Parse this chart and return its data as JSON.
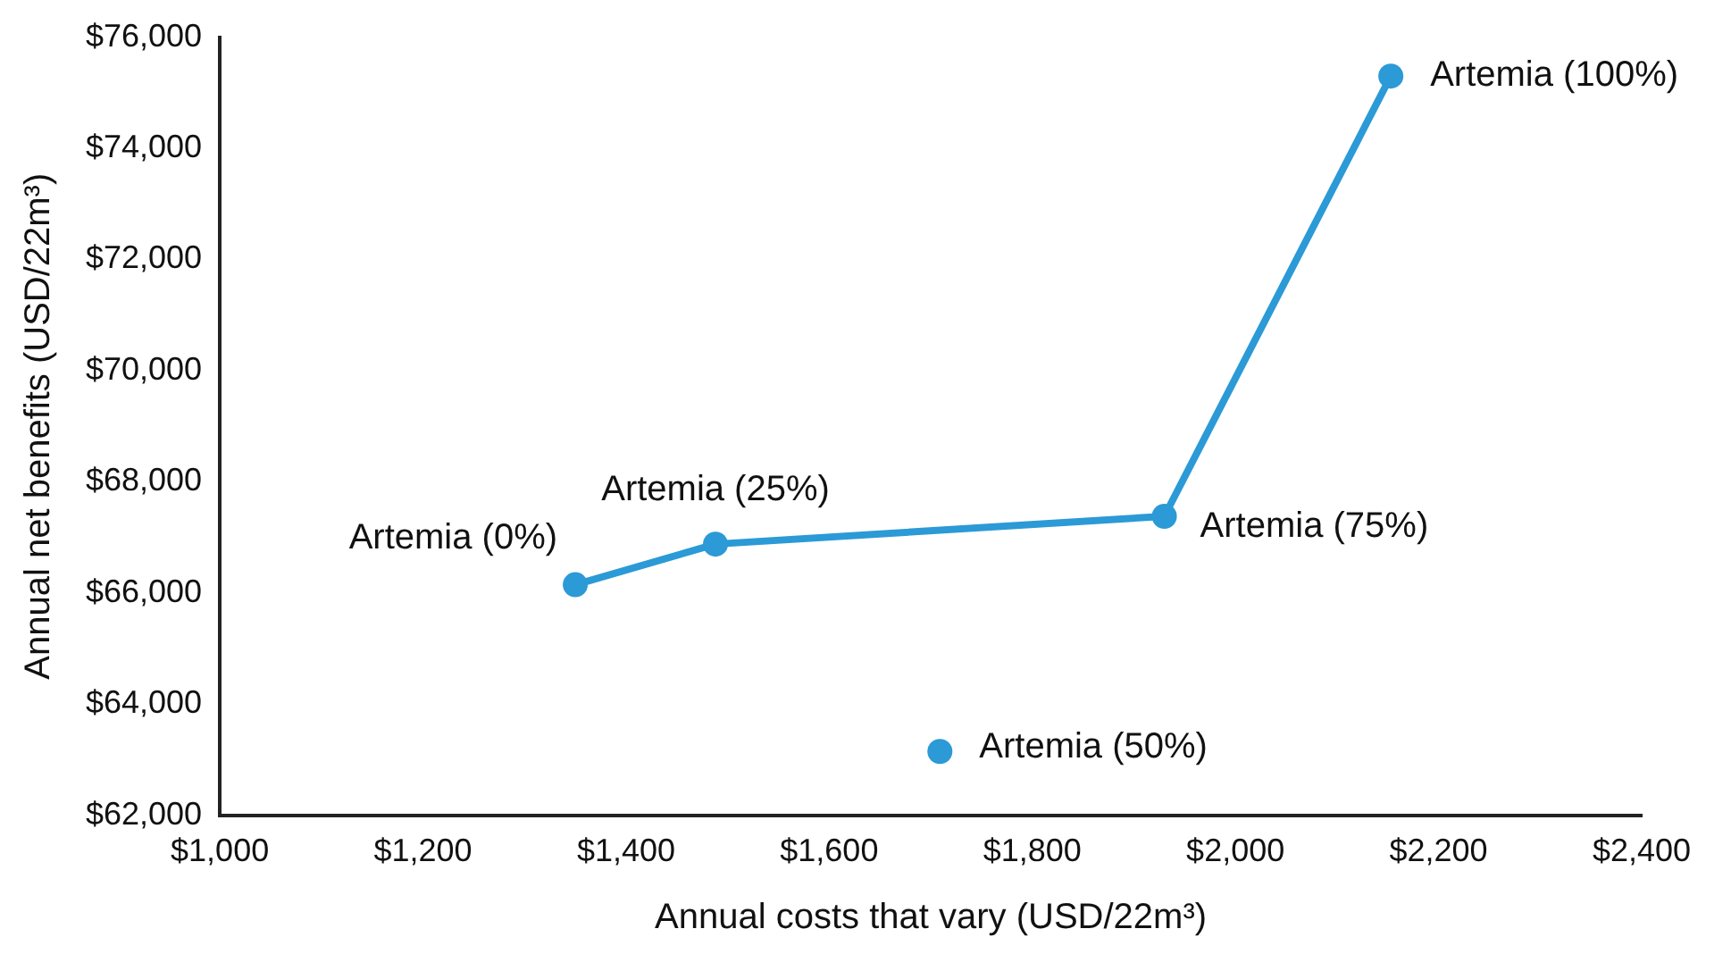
{
  "chart_data": {
    "type": "line",
    "xlabel": "Annual costs that vary (USD/22m³)",
    "ylabel": "Annual net benefits (USD/22m³)",
    "series": [
      {
        "color": "#2b9ad6",
        "x": [
          1350,
          1488,
          1930,
          2153
        ],
        "values": [
          66150,
          66880,
          67380,
          75300
        ]
      },
      {
        "type": "scatter",
        "color": "#2b9ad6",
        "x": [
          1709
        ],
        "values": [
          63150
        ]
      }
    ],
    "xlim": [
      1000,
      2400
    ],
    "xticks": [
      {
        "value": 1000,
        "label": "$1,000"
      },
      {
        "value": 1200,
        "label": "$1,200"
      },
      {
        "value": 1400,
        "label": "$1,400"
      },
      {
        "value": 1600,
        "label": "$1,600"
      },
      {
        "value": 1800,
        "label": "$1,800"
      },
      {
        "value": 2000,
        "label": "$2,000"
      },
      {
        "value": 2200,
        "label": "$2,200"
      },
      {
        "value": 2400,
        "label": "$2,400"
      }
    ],
    "ylim": [
      62000,
      76000
    ],
    "yticks": [
      {
        "value": 62000,
        "label": "$62,000"
      },
      {
        "value": 64000,
        "label": "$64,000"
      },
      {
        "value": 66000,
        "label": "$66,000"
      },
      {
        "value": 68000,
        "label": "$68,000"
      },
      {
        "value": 70000,
        "label": "$70,000"
      },
      {
        "value": 72000,
        "label": "$72,000"
      },
      {
        "value": 74000,
        "label": "$74,000"
      },
      {
        "value": 76000,
        "label": "$76,000"
      }
    ],
    "grid": false,
    "legend": false,
    "marker": "circle",
    "line_style": "solid",
    "annotations": [
      {
        "text": "Artemia (0%)",
        "x": 1350,
        "y": 66150
      },
      {
        "text": "Artemia (25%)",
        "x": 1488,
        "y": 66880
      },
      {
        "text": "Artemia (75%)",
        "x": 1930,
        "y": 67380
      },
      {
        "text": "Artemia (100%)",
        "x": 2153,
        "y": 75300
      },
      {
        "text": "Artemia (50%)",
        "x": 1709,
        "y": 63150
      }
    ]
  }
}
